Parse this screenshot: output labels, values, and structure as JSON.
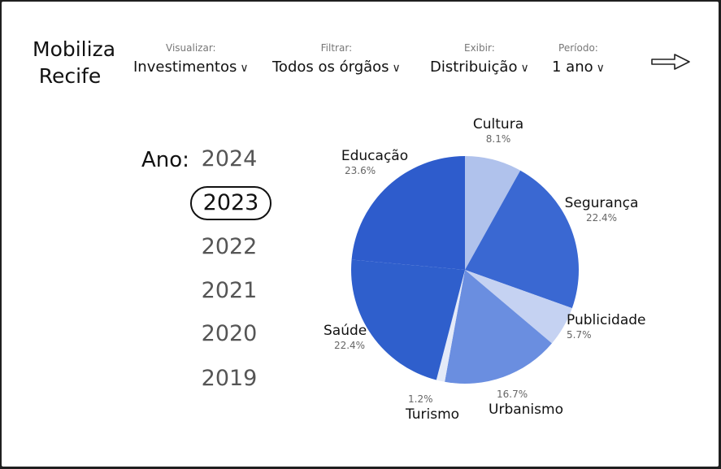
{
  "app": {
    "title_line1": "Mobiliza",
    "title_line2": "Recife"
  },
  "filters": [
    {
      "label": "Visualizar:",
      "value": "Investimentos"
    },
    {
      "label": "Filtrar:",
      "value": "Todos os órgãos"
    },
    {
      "label": "Exibir:",
      "value": "Distribuição"
    },
    {
      "label": "Período:",
      "value": "1 ano"
    }
  ],
  "nav": {
    "next_icon": "arrow-right-icon"
  },
  "years": {
    "label": "Ano:",
    "items": [
      "2024",
      "2023",
      "2022",
      "2021",
      "2020",
      "2019"
    ],
    "selected": "2023"
  },
  "chart_data": {
    "type": "pie",
    "slices": [
      {
        "name": "Cultura",
        "value": 8.1,
        "pct_label": "8.1%",
        "color": "#b0c2ec"
      },
      {
        "name": "Segurança",
        "value": 22.4,
        "pct_label": "22.4%",
        "color": "#3a68d2"
      },
      {
        "name": "Publicidade",
        "value": 5.7,
        "pct_label": "5.7%",
        "color": "#c5d2f2"
      },
      {
        "name": "Urbanismo",
        "value": 16.7,
        "pct_label": "16.7%",
        "color": "#6a8ee0"
      },
      {
        "name": "Turismo",
        "value": 1.2,
        "pct_label": "1.2%",
        "color": "#e4eaf8"
      },
      {
        "name": "Saúde",
        "value": 22.4,
        "pct_label": "22.4%",
        "color": "#2f5fcc"
      },
      {
        "name": "Educação",
        "value": 23.6,
        "pct_label": "23.6%",
        "color": "#2e5ccc"
      }
    ]
  }
}
